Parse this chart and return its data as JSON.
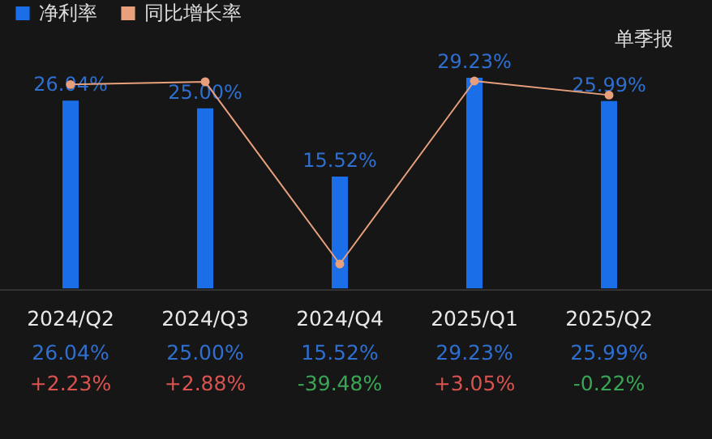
{
  "chart_data": {
    "type": "bar",
    "categories": [
      "2024/Q2",
      "2024/Q3",
      "2024/Q4",
      "2025/Q1",
      "2025/Q2"
    ],
    "legend": "top left",
    "marker": "circle",
    "annotations": [
      "单季报"
    ],
    "series": [
      {
        "name": "净利率",
        "color": "#1a6ee8",
        "values": [
          26.04,
          25.0,
          15.52,
          29.23,
          25.99
        ],
        "value_labels": [
          "26.04%",
          "25.00%",
          "15.52%",
          "29.23%",
          "25.99%"
        ]
      },
      {
        "name": "同比增长率",
        "type": "line",
        "axis": "y2",
        "color": "#e8a07c",
        "values": [
          2.23,
          2.88,
          -39.48,
          3.05,
          -0.22
        ],
        "value_labels": [
          "+2.23%",
          "+2.88%",
          "-39.48%",
          "+3.05%",
          "-0.22%"
        ]
      }
    ]
  }
}
